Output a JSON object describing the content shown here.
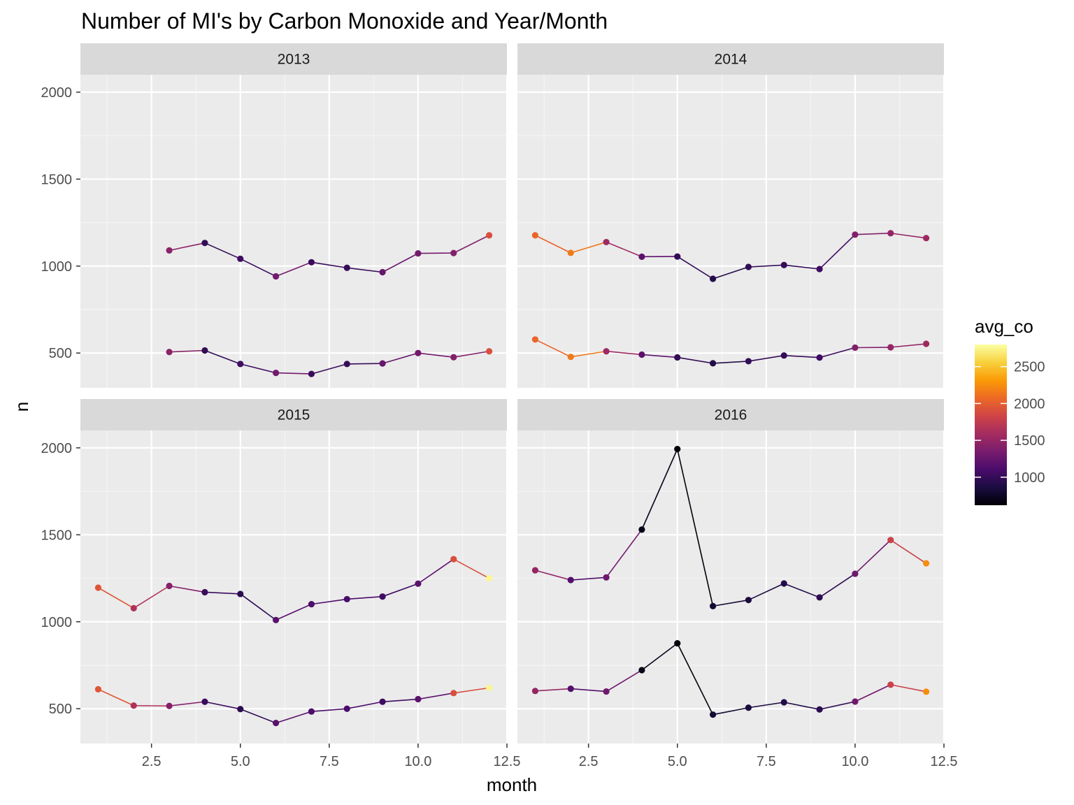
{
  "chart_data": {
    "type": "line",
    "title": "Number of MI's by Carbon Monoxide and Year/Month",
    "xlabel": "month",
    "ylabel": "n",
    "xlim": [
      0.5,
      12.5
    ],
    "ylim": [
      300,
      2100
    ],
    "x_ticks": [
      2.5,
      5.0,
      7.5,
      10.0,
      12.5
    ],
    "x_tick_labels": [
      "2.5",
      "5.0",
      "7.5",
      "10.0",
      "12.5"
    ],
    "y_ticks": [
      500,
      1000,
      1500,
      2000
    ],
    "y_tick_labels": [
      "500",
      "1000",
      "1500",
      "2000"
    ],
    "grid": true,
    "legend": {
      "title": "avg_co",
      "position": "right",
      "range": [
        620,
        2800
      ],
      "ticks": [
        1000,
        1500,
        2000,
        2500
      ],
      "tick_labels": [
        "1000",
        "1500",
        "2000",
        "2500"
      ],
      "palette": [
        "#000004",
        "#1b0c41",
        "#4a0c6b",
        "#781c6d",
        "#a52c60",
        "#cf4446",
        "#ed6925",
        "#fb9b06",
        "#f7d13d",
        "#fcffa4"
      ]
    },
    "panels": [
      {
        "strip": "2013",
        "series": [
          {
            "x": [
              3,
              4,
              5,
              6,
              7,
              8,
              9,
              10,
              11,
              12
            ],
            "y": [
              1090,
              1133,
              1042,
              941,
              1022,
              990,
              965,
              1073,
              1075,
              1177
            ],
            "avg_co": [
              1450,
              980,
              1050,
              1320,
              1020,
              1000,
              1250,
              1320,
              1400,
              1900
            ]
          },
          {
            "x": [
              3,
              4,
              5,
              6,
              7,
              8,
              9,
              10,
              11,
              12
            ],
            "y": [
              506,
              515,
              437,
              386,
              380,
              437,
              440,
              500,
              476,
              510
            ],
            "avg_co": [
              1450,
              980,
              1050,
              1320,
              1020,
              1000,
              1250,
              1320,
              1400,
              1900
            ]
          }
        ]
      },
      {
        "strip": "2014",
        "series": [
          {
            "x": [
              1,
              2,
              3,
              4,
              5,
              6,
              7,
              8,
              9,
              10,
              11,
              12
            ],
            "y": [
              1177,
              1076,
              1138,
              1054,
              1055,
              927,
              995,
              1006,
              983,
              1181,
              1189,
              1161
            ],
            "avg_co": [
              2050,
              2150,
              1550,
              1200,
              980,
              900,
              980,
              1000,
              1050,
              1400,
              1500,
              1550
            ]
          },
          {
            "x": [
              1,
              2,
              3,
              4,
              5,
              6,
              7,
              8,
              9,
              10,
              11,
              12
            ],
            "y": [
              578,
              478,
              510,
              491,
              475,
              441,
              453,
              486,
              474,
              531,
              533,
              553
            ],
            "avg_co": [
              2050,
              2150,
              1550,
              1200,
              980,
              900,
              980,
              1000,
              1050,
              1400,
              1500,
              1550
            ]
          }
        ]
      },
      {
        "strip": "2015",
        "series": [
          {
            "x": [
              1,
              2,
              3,
              4,
              5,
              6,
              7,
              8,
              9,
              10,
              11,
              12
            ],
            "y": [
              1196,
              1078,
              1206,
              1170,
              1160,
              1010,
              1101,
              1130,
              1145,
              1219,
              1360,
              1250
            ],
            "avg_co": [
              1950,
              1650,
              1420,
              1020,
              950,
              1180,
              1120,
              1100,
              1050,
              1200,
              1900,
              2750
            ]
          },
          {
            "x": [
              1,
              2,
              3,
              4,
              5,
              6,
              7,
              8,
              9,
              10,
              11,
              12
            ],
            "y": [
              612,
              518,
              516,
              540,
              498,
              418,
              484,
              500,
              540,
              555,
              590,
              620
            ],
            "avg_co": [
              1950,
              1650,
              1420,
              1020,
              950,
              1180,
              1120,
              1100,
              1050,
              1200,
              1900,
              2750
            ]
          }
        ]
      },
      {
        "strip": "2016",
        "series": [
          {
            "x": [
              1,
              2,
              3,
              4,
              5,
              6,
              7,
              8,
              9,
              10,
              11,
              12
            ],
            "y": [
              1296,
              1240,
              1255,
              1530,
              1993,
              1090,
              1125,
              1220,
              1140,
              1276,
              1470,
              1336
            ],
            "avg_co": [
              1500,
              1150,
              1300,
              700,
              650,
              800,
              850,
              900,
              950,
              1300,
              1800,
              2250
            ]
          },
          {
            "x": [
              1,
              2,
              3,
              4,
              5,
              6,
              7,
              8,
              9,
              10,
              11,
              12
            ],
            "y": [
              602,
              615,
              599,
              722,
              876,
              466,
              506,
              537,
              496,
              541,
              638,
              598
            ],
            "avg_co": [
              1500,
              1150,
              1300,
              700,
              650,
              800,
              850,
              900,
              950,
              1300,
              1800,
              2250
            ]
          }
        ]
      }
    ]
  }
}
